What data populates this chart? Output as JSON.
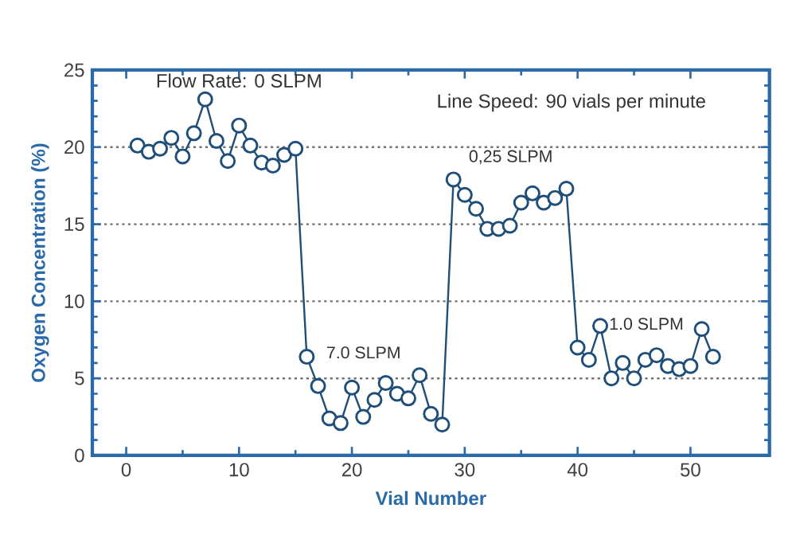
{
  "chart_data": {
    "type": "line",
    "xlabel": "Vial Number",
    "ylabel": "Oxygen Concentration (%)",
    "x": [
      1,
      2,
      3,
      4,
      5,
      6,
      7,
      8,
      9,
      10,
      11,
      12,
      13,
      14,
      15,
      16,
      17,
      18,
      19,
      20,
      21,
      22,
      23,
      24,
      25,
      26,
      27,
      28,
      29,
      30,
      31,
      32,
      33,
      34,
      35,
      36,
      37,
      38,
      39,
      40,
      41,
      42,
      43,
      44,
      45,
      46,
      47,
      48,
      49,
      50,
      51,
      52
    ],
    "series": [
      {
        "color": "#1f4e79",
        "values": [
          20.1,
          19.7,
          19.9,
          20.6,
          19.4,
          20.9,
          23.1,
          20.4,
          19.1,
          21.4,
          20.1,
          19.0,
          18.8,
          19.5,
          19.9,
          6.4,
          4.5,
          2.4,
          2.1,
          4.4,
          2.5,
          3.6,
          4.7,
          4.0,
          3.7,
          5.2,
          2.7,
          2.0,
          17.9,
          16.9,
          16.0,
          14.7,
          14.7,
          14.9,
          16.4,
          17.0,
          16.4,
          16.7,
          17.3,
          7.0,
          6.2,
          8.4,
          5.0,
          6.0,
          5.0,
          6.2,
          6.5,
          5.8,
          5.6,
          5.8,
          8.2,
          6.4
        ]
      }
    ],
    "xlim": [
      -3,
      57
    ],
    "ylim": [
      0,
      25
    ],
    "xticks": [
      0,
      10,
      20,
      30,
      40,
      50
    ],
    "yticks": [
      0,
      5,
      10,
      15,
      20,
      25
    ],
    "grid": "y",
    "marker": "circle",
    "line_style": "solid",
    "annotations": [
      {
        "text": "Flow Rate: 0 SLPM",
        "x": 7,
        "y": 23.1
      },
      "Line Speed: 90 vials per minute",
      {
        "text": "7.0 SLPM",
        "x": 16,
        "y": 6.4
      },
      {
        "text": "0,25 SLPM",
        "x": 29,
        "y": 17.9
      },
      {
        "text": "1.0 SLPM",
        "x": 42,
        "y": 8.4
      }
    ]
  }
}
